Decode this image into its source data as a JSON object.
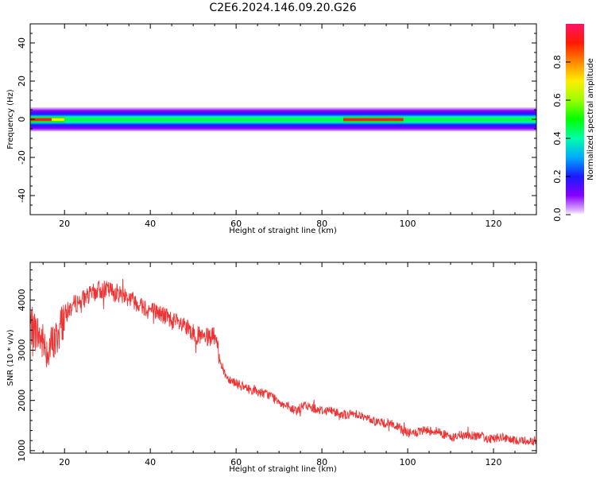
{
  "chart_data": [
    {
      "type": "heatmap",
      "title": "C2E6.2024.146.09.20.G26",
      "xlabel": "Height of straight line (km)",
      "ylabel": "Frequency (Hz)",
      "xlim": [
        12,
        130
      ],
      "ylim": [
        -50,
        50
      ],
      "x_ticks": [
        20,
        40,
        60,
        80,
        100,
        120
      ],
      "y_ticks": [
        -40,
        -20,
        0,
        20,
        40
      ],
      "colorbar": {
        "label": "Normalized spectral amplitude",
        "range": [
          0,
          1
        ],
        "ticks": [
          0.0,
          0.2,
          0.4,
          0.6,
          0.8
        ],
        "tick_labels": [
          "0.0",
          "0.2",
          "0.4",
          "0.6",
          "0.8"
        ],
        "colormap": "gist_rainbow_r"
      },
      "band_center_hz": 0,
      "band_halfwidth_hz": 2.5,
      "peak_amplitude_segments": [
        {
          "x_range": [
            12,
            17
          ],
          "amplitude": 0.95
        },
        {
          "x_range": [
            17,
            20
          ],
          "amplitude": 0.7
        },
        {
          "x_range": [
            20,
            85
          ],
          "amplitude": 0.45
        },
        {
          "x_range": [
            85,
            99
          ],
          "amplitude": 0.95
        },
        {
          "x_range": [
            99,
            130
          ],
          "amplitude": 0.45
        }
      ]
    },
    {
      "type": "line",
      "xlabel": "Height of straight line (km)",
      "ylabel": "SNR (10 * v/v)",
      "xlim": [
        12,
        130
      ],
      "ylim": [
        950,
        4750
      ],
      "x_ticks": [
        20,
        40,
        60,
        80,
        100,
        120
      ],
      "y_ticks": [
        1000,
        2000,
        3000,
        4000
      ],
      "color": "#ee3333",
      "series": [
        {
          "x": [
            12,
            14,
            16,
            18,
            20,
            22,
            24,
            26,
            28,
            30,
            32,
            34,
            36,
            38,
            40,
            42,
            44,
            46,
            48,
            50,
            52,
            54,
            55,
            56,
            57,
            58,
            60,
            62,
            64,
            66,
            68,
            70,
            72,
            74,
            76,
            78,
            80,
            82,
            84,
            86,
            88,
            90,
            92,
            94,
            96,
            98,
            100,
            102,
            104,
            106,
            108,
            110,
            112,
            114,
            116,
            118,
            120,
            122,
            124,
            126,
            128,
            130
          ],
          "y": [
            3500,
            3300,
            3000,
            3200,
            3700,
            3900,
            4000,
            4100,
            4200,
            4200,
            4150,
            4100,
            4000,
            3900,
            3800,
            3750,
            3650,
            3550,
            3450,
            3350,
            3250,
            3250,
            3300,
            2900,
            2600,
            2450,
            2350,
            2250,
            2200,
            2150,
            2100,
            2000,
            1850,
            1800,
            1900,
            1850,
            1800,
            1800,
            1750,
            1700,
            1750,
            1650,
            1600,
            1550,
            1550,
            1450,
            1350,
            1350,
            1400,
            1400,
            1350,
            1250,
            1300,
            1300,
            1300,
            1250,
            1250,
            1250,
            1200,
            1200,
            1200,
            1200
          ]
        }
      ]
    }
  ]
}
